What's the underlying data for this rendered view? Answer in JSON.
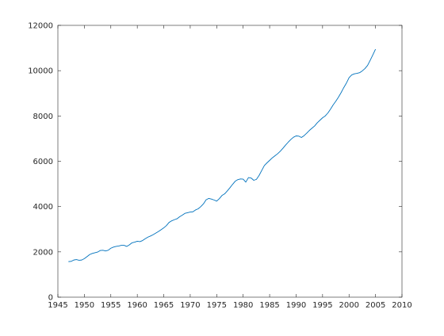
{
  "chart_data": {
    "type": "line",
    "title": "",
    "xlabel": "",
    "ylabel": "",
    "xlim": [
      1945,
      2010
    ],
    "ylim": [
      0,
      12000
    ],
    "xticks": [
      1945,
      1950,
      1955,
      1960,
      1965,
      1970,
      1975,
      1980,
      1985,
      1990,
      1995,
      2000,
      2005,
      2010
    ],
    "yticks": [
      0,
      2000,
      4000,
      6000,
      8000,
      10000,
      12000
    ],
    "grid": false,
    "legend": "none",
    "series": [
      {
        "color": "#0072bd",
        "x": [
          1947.0,
          1947.5,
          1948.0,
          1948.5,
          1949.0,
          1949.5,
          1950.0,
          1950.5,
          1951.0,
          1951.5,
          1952.0,
          1952.5,
          1953.0,
          1953.5,
          1954.0,
          1954.5,
          1955.0,
          1955.5,
          1956.0,
          1956.5,
          1957.0,
          1957.5,
          1958.0,
          1958.5,
          1959.0,
          1959.5,
          1960.0,
          1960.5,
          1961.0,
          1961.5,
          1962.0,
          1962.5,
          1963.0,
          1963.5,
          1964.0,
          1964.5,
          1965.0,
          1965.5,
          1966.0,
          1966.5,
          1967.0,
          1967.5,
          1968.0,
          1968.5,
          1969.0,
          1969.5,
          1970.0,
          1970.5,
          1971.0,
          1971.5,
          1972.0,
          1972.5,
          1973.0,
          1973.5,
          1974.0,
          1974.5,
          1975.0,
          1975.5,
          1976.0,
          1976.5,
          1977.0,
          1977.5,
          1978.0,
          1978.5,
          1979.0,
          1979.5,
          1980.0,
          1980.5,
          1981.0,
          1981.5,
          1982.0,
          1982.5,
          1983.0,
          1983.5,
          1984.0,
          1984.5,
          1985.0,
          1985.5,
          1986.0,
          1986.5,
          1987.0,
          1987.5,
          1988.0,
          1988.5,
          1989.0,
          1989.5,
          1990.0,
          1990.5,
          1991.0,
          1991.5,
          1992.0,
          1992.5,
          1993.0,
          1993.5,
          1994.0,
          1994.5,
          1995.0,
          1995.5,
          1996.0,
          1996.5,
          1997.0,
          1997.5,
          1998.0,
          1998.5,
          1999.0,
          1999.5,
          2000.0,
          2000.5,
          2001.0,
          2001.5,
          2002.0,
          2002.5,
          2003.0,
          2003.5,
          2004.0,
          2004.5,
          2005.0
        ],
        "y": [
          1570,
          1580,
          1640,
          1660,
          1630,
          1640,
          1700,
          1790,
          1880,
          1930,
          1960,
          1990,
          2060,
          2070,
          2040,
          2070,
          2160,
          2210,
          2240,
          2260,
          2290,
          2290,
          2240,
          2310,
          2400,
          2430,
          2470,
          2450,
          2500,
          2580,
          2650,
          2700,
          2760,
          2830,
          2900,
          2980,
          3060,
          3160,
          3300,
          3370,
          3420,
          3460,
          3550,
          3620,
          3700,
          3730,
          3760,
          3770,
          3850,
          3900,
          4000,
          4120,
          4300,
          4360,
          4330,
          4290,
          4240,
          4350,
          4490,
          4560,
          4690,
          4830,
          4980,
          5120,
          5190,
          5220,
          5210,
          5080,
          5280,
          5260,
          5160,
          5200,
          5370,
          5590,
          5810,
          5930,
          6040,
          6150,
          6240,
          6330,
          6440,
          6570,
          6710,
          6840,
          6960,
          7060,
          7120,
          7110,
          7050,
          7130,
          7240,
          7360,
          7460,
          7560,
          7700,
          7810,
          7920,
          8000,
          8130,
          8300,
          8490,
          8650,
          8830,
          9030,
          9250,
          9450,
          9690,
          9810,
          9860,
          9880,
          9910,
          9990,
          10090,
          10230,
          10460,
          10700,
          10950
        ]
      }
    ]
  }
}
